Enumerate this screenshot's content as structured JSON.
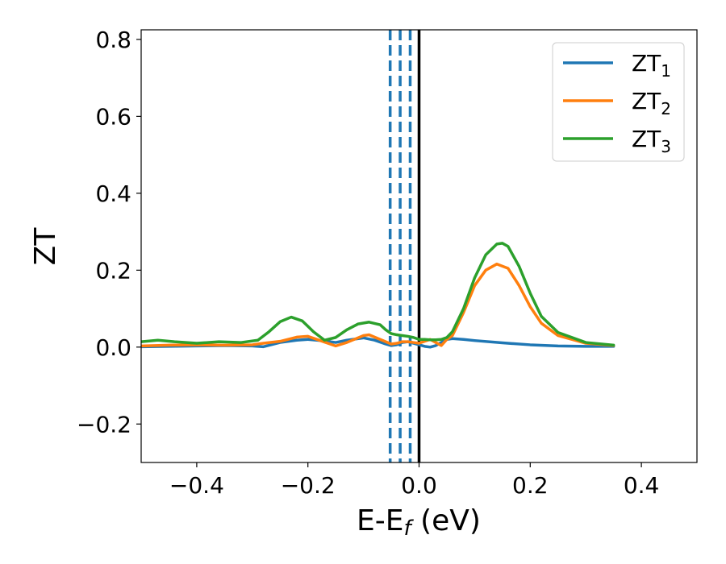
{
  "chart_data": {
    "type": "line",
    "xlabel": "E-E",
    "xlabel_sub": "f",
    "xlabel_unit": " (eV)",
    "ylabel": "ZT",
    "xlim": [
      -0.5,
      0.5
    ],
    "ylim": [
      -0.3,
      0.825
    ],
    "xticks": [
      -0.4,
      -0.2,
      0.0,
      0.2,
      0.4
    ],
    "xtick_labels": [
      "−0.4",
      "−0.2",
      "0.0",
      "0.2",
      "0.4"
    ],
    "yticks": [
      -0.2,
      0.0,
      0.2,
      0.4,
      0.6,
      0.8
    ],
    "ytick_labels": [
      "−0.2",
      "0.0",
      "0.2",
      "0.4",
      "0.6",
      "0.8"
    ],
    "grid": false,
    "legend_position": "top-right",
    "vlines": [
      {
        "x": -0.052,
        "style": "dashed",
        "color": "#1f77b4"
      },
      {
        "x": -0.034,
        "style": "dashed",
        "color": "#1f77b4"
      },
      {
        "x": -0.016,
        "style": "dashed",
        "color": "#1f77b4"
      },
      {
        "x": 0.0,
        "style": "solid",
        "color": "#000000"
      }
    ],
    "series": [
      {
        "name": "ZT",
        "name_sub": "1",
        "color": "#1f77b4",
        "x": [
          -0.5,
          -0.45,
          -0.4,
          -0.35,
          -0.3,
          -0.28,
          -0.25,
          -0.22,
          -0.2,
          -0.17,
          -0.15,
          -0.13,
          -0.1,
          -0.08,
          -0.06,
          -0.05,
          -0.04,
          -0.03,
          -0.02,
          -0.01,
          0.0,
          0.01,
          0.02,
          0.03,
          0.04,
          0.05,
          0.06,
          0.08,
          0.1,
          0.15,
          0.2,
          0.25,
          0.3,
          0.35
        ],
        "y": [
          0.001,
          0.002,
          0.003,
          0.004,
          0.003,
          0.001,
          0.012,
          0.018,
          0.02,
          0.016,
          0.012,
          0.018,
          0.024,
          0.018,
          0.008,
          0.004,
          0.006,
          0.012,
          0.014,
          0.01,
          0.006,
          0.002,
          0.0,
          0.004,
          0.012,
          0.02,
          0.022,
          0.02,
          0.017,
          0.011,
          0.006,
          0.003,
          0.002,
          0.002
        ]
      },
      {
        "name": "ZT",
        "name_sub": "2",
        "color": "#ff7f0e",
        "x": [
          -0.5,
          -0.45,
          -0.4,
          -0.35,
          -0.3,
          -0.28,
          -0.25,
          -0.22,
          -0.2,
          -0.18,
          -0.15,
          -0.13,
          -0.1,
          -0.09,
          -0.07,
          -0.05,
          -0.04,
          -0.03,
          -0.02,
          -0.01,
          0.0,
          0.01,
          0.02,
          0.03,
          0.04,
          0.05,
          0.06,
          0.08,
          0.1,
          0.12,
          0.14,
          0.16,
          0.18,
          0.2,
          0.22,
          0.25,
          0.3,
          0.35
        ],
        "y": [
          0.003,
          0.005,
          0.006,
          0.005,
          0.006,
          0.01,
          0.015,
          0.026,
          0.028,
          0.018,
          0.003,
          0.012,
          0.03,
          0.032,
          0.02,
          0.008,
          0.01,
          0.014,
          0.014,
          0.012,
          0.01,
          0.015,
          0.02,
          0.012,
          0.004,
          0.02,
          0.03,
          0.09,
          0.16,
          0.2,
          0.216,
          0.205,
          0.16,
          0.105,
          0.062,
          0.03,
          0.01,
          0.004
        ]
      },
      {
        "name": "ZT",
        "name_sub": "3",
        "color": "#2ca02c",
        "x": [
          -0.5,
          -0.47,
          -0.44,
          -0.4,
          -0.36,
          -0.32,
          -0.29,
          -0.27,
          -0.25,
          -0.23,
          -0.21,
          -0.19,
          -0.17,
          -0.15,
          -0.13,
          -0.11,
          -0.09,
          -0.07,
          -0.06,
          -0.05,
          -0.04,
          -0.03,
          -0.02,
          -0.01,
          0.0,
          0.01,
          0.02,
          0.03,
          0.04,
          0.05,
          0.06,
          0.08,
          0.1,
          0.12,
          0.14,
          0.15,
          0.16,
          0.18,
          0.2,
          0.22,
          0.25,
          0.3,
          0.35
        ],
        "y": [
          0.014,
          0.018,
          0.014,
          0.01,
          0.014,
          0.012,
          0.018,
          0.04,
          0.066,
          0.078,
          0.068,
          0.04,
          0.018,
          0.025,
          0.045,
          0.06,
          0.065,
          0.058,
          0.045,
          0.035,
          0.032,
          0.03,
          0.028,
          0.025,
          0.02,
          0.02,
          0.019,
          0.019,
          0.02,
          0.025,
          0.04,
          0.1,
          0.18,
          0.24,
          0.268,
          0.27,
          0.262,
          0.21,
          0.14,
          0.08,
          0.038,
          0.012,
          0.005
        ]
      }
    ]
  }
}
